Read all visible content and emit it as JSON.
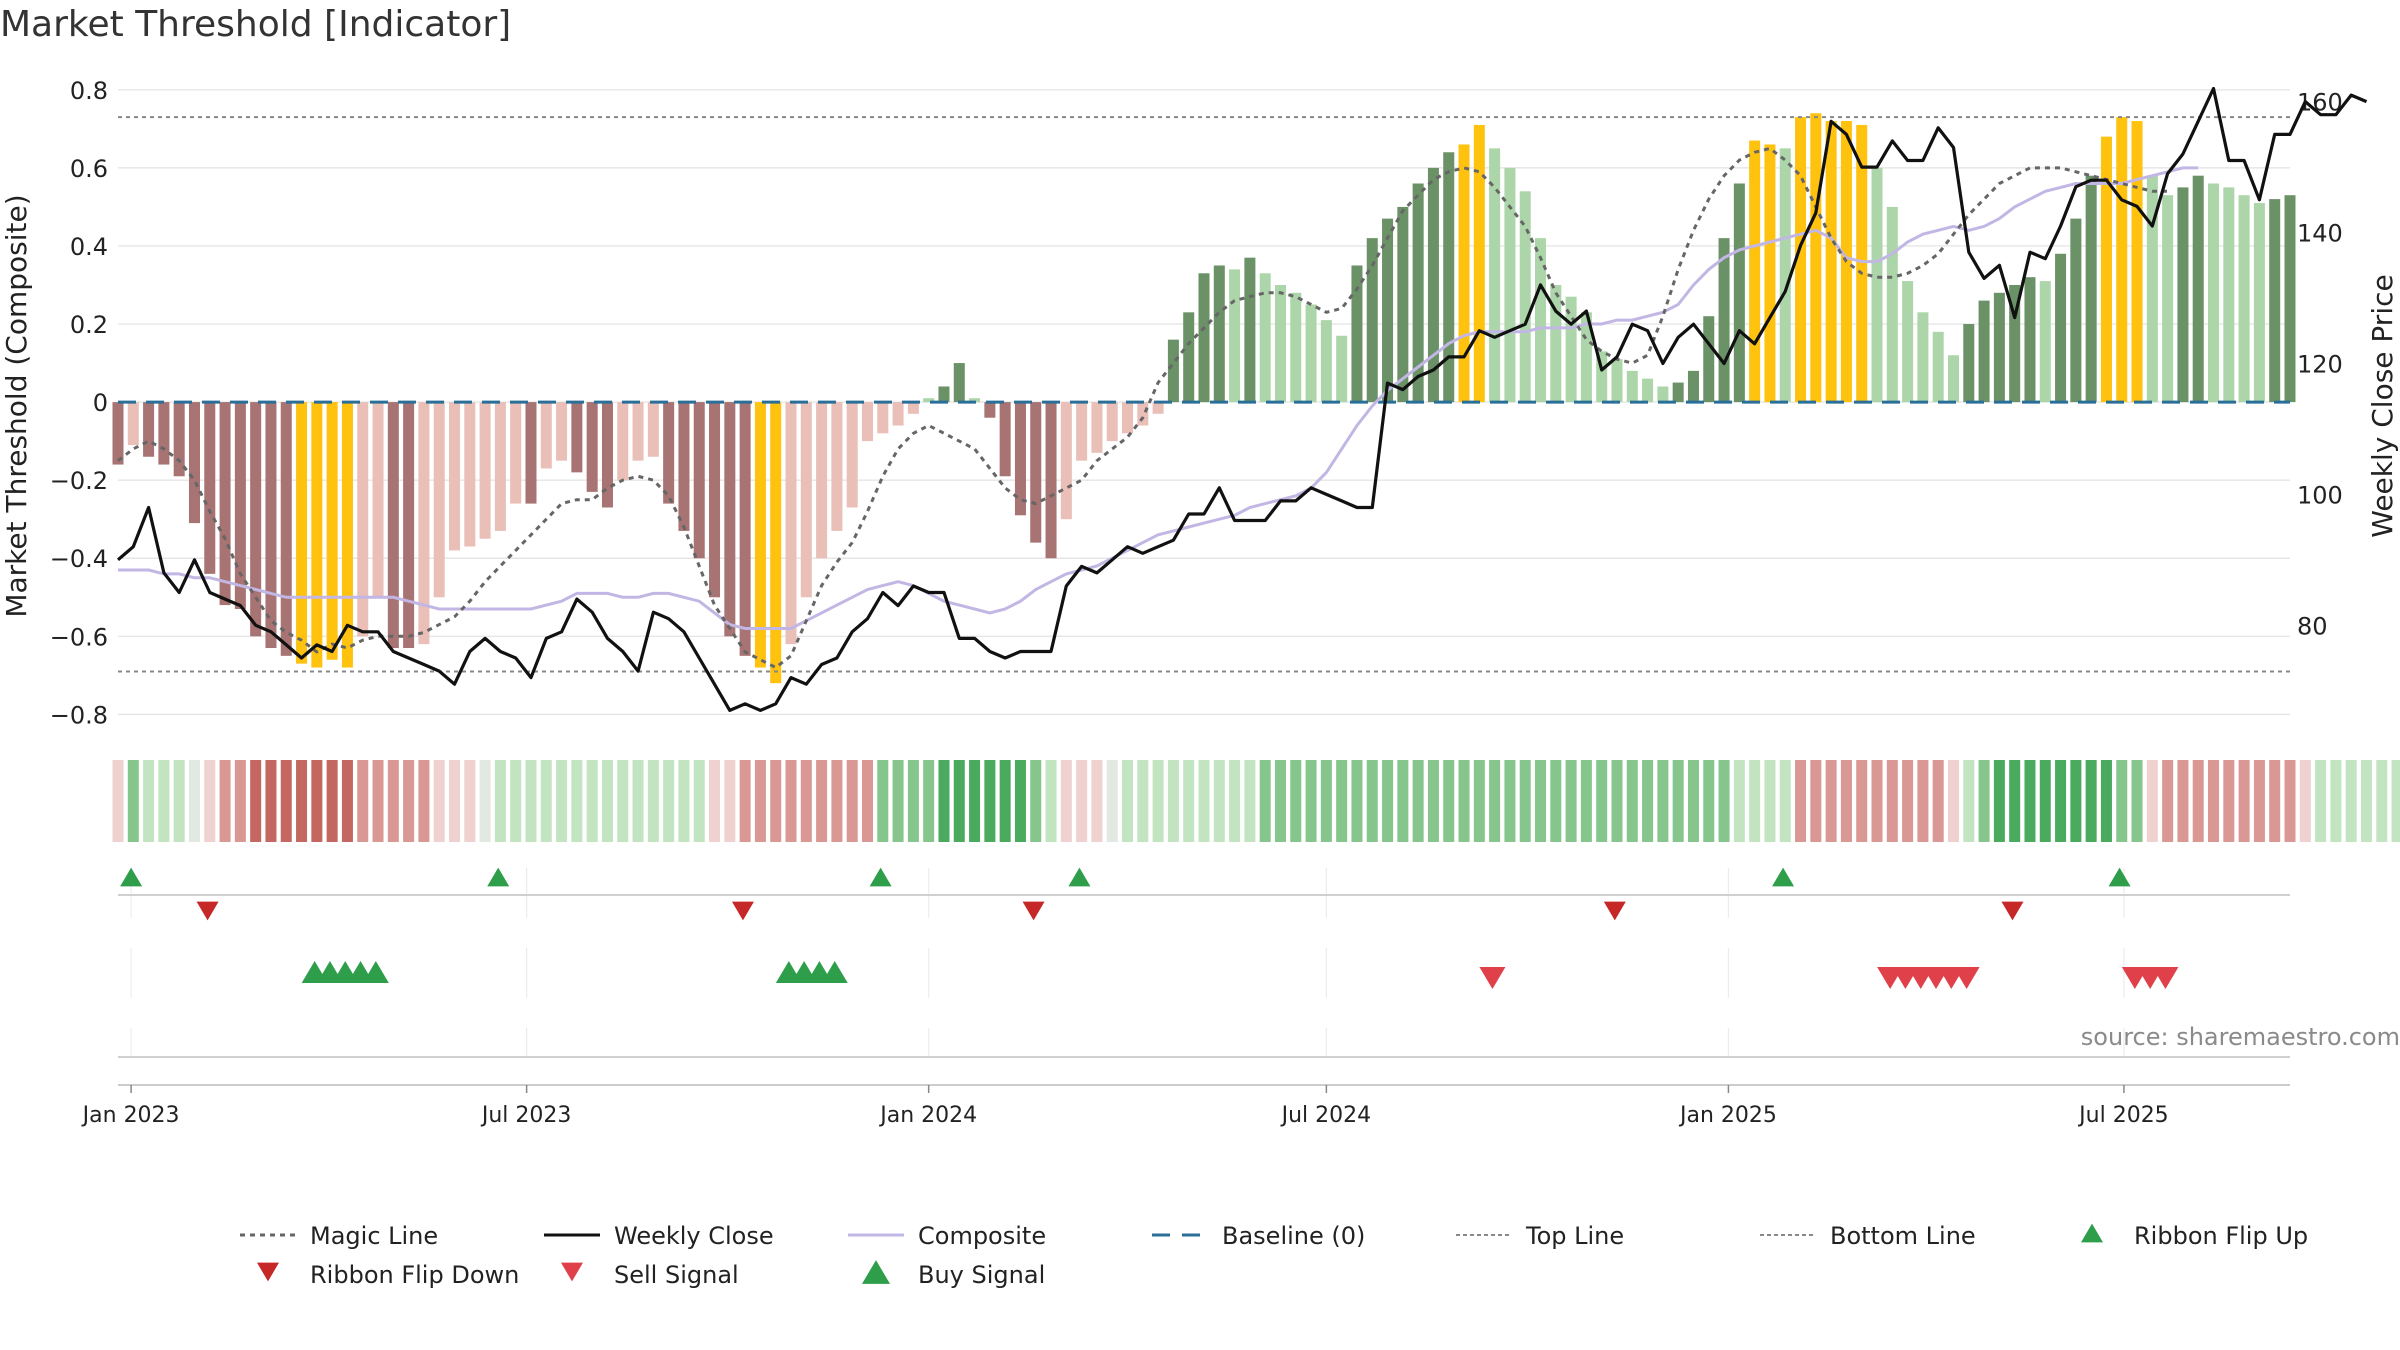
{
  "chart_data": {
    "type": "composite",
    "title": "Market Threshold [Indicator]",
    "source": "source: sharemaestro.com",
    "ylabel": "Market Threshold (Composite)",
    "y2label": "Weekly Close Price",
    "ylim": [
      -0.84,
      0.82
    ],
    "y2lim": [
      64,
      163
    ],
    "yticks": [
      0.8,
      0.6,
      0.4,
      0.2,
      0,
      -0.2,
      -0.4,
      -0.6,
      -0.8
    ],
    "ytick_labels": [
      "0.8",
      "0.6",
      "0.4",
      "0.2",
      "0",
      "−0.2",
      "−0.4",
      "−0.6",
      "−0.8"
    ],
    "y2ticks": [
      160,
      140,
      120,
      100,
      80
    ],
    "y2tick_labels": [
      "160",
      "140",
      "120",
      "100",
      "80"
    ],
    "x_start": "2022-12-26",
    "x_end": "2025-09-15",
    "xticks": [
      {
        "date": "2023-01-01",
        "label": "Jan 2023"
      },
      {
        "date": "2023-07-01",
        "label": "Jul 2023"
      },
      {
        "date": "2024-01-01",
        "label": "Jan 2024"
      },
      {
        "date": "2024-07-01",
        "label": "Jul 2024"
      },
      {
        "date": "2025-01-01",
        "label": "Jan 2025"
      },
      {
        "date": "2025-07-01",
        "label": "Jul 2025"
      }
    ],
    "top_line": 0.73,
    "bottom_line": -0.69,
    "weeks": 143,
    "composite_bars": [
      -0.16,
      -0.11,
      -0.14,
      -0.16,
      -0.19,
      -0.31,
      -0.44,
      -0.52,
      -0.53,
      -0.6,
      -0.63,
      -0.65,
      -0.67,
      -0.68,
      -0.66,
      -0.68,
      -0.6,
      -0.5,
      -0.63,
      -0.63,
      -0.62,
      -0.5,
      -0.38,
      -0.37,
      -0.35,
      -0.33,
      -0.26,
      -0.26,
      -0.17,
      -0.15,
      -0.18,
      -0.23,
      -0.27,
      -0.2,
      -0.15,
      -0.14,
      -0.26,
      -0.33,
      -0.4,
      -0.5,
      -0.6,
      -0.65,
      -0.68,
      -0.72,
      -0.62,
      -0.5,
      -0.4,
      -0.33,
      -0.27,
      -0.1,
      -0.08,
      -0.06,
      -0.03,
      0.01,
      0.04,
      0.1,
      0.01,
      -0.04,
      -0.19,
      -0.29,
      -0.36,
      -0.4,
      -0.3,
      -0.15,
      -0.13,
      -0.1,
      -0.08,
      -0.06,
      -0.03,
      0.16,
      0.23,
      0.33,
      0.35,
      0.34,
      0.37,
      0.33,
      0.3,
      0.28,
      0.25,
      0.21,
      0.17,
      0.35,
      0.42,
      0.47,
      0.5,
      0.56,
      0.6,
      0.64,
      0.66,
      0.71,
      0.65,
      0.6,
      0.54,
      0.42,
      0.3,
      0.27,
      0.23,
      0.13,
      0.11,
      0.08,
      0.06,
      0.04,
      0.05,
      0.08,
      0.22,
      0.42,
      0.56,
      0.67,
      0.66,
      0.65,
      0.73,
      0.74,
      0.72,
      0.72,
      0.71,
      0.6,
      0.5,
      0.31,
      0.23,
      0.18,
      0.12,
      0.2,
      0.26,
      0.28,
      0.3,
      0.32,
      0.31,
      0.38,
      0.47,
      0.58,
      0.68,
      0.73,
      0.72,
      0.58,
      0.53,
      0.55,
      0.58,
      0.56,
      0.55,
      0.53,
      0.51,
      0.52,
      0.53
    ],
    "weekly_close": [
      90,
      92,
      98,
      88,
      85,
      90,
      85,
      84,
      83,
      80,
      79,
      77,
      75,
      77,
      76,
      80,
      79,
      79,
      76,
      75,
      74,
      73,
      71,
      76,
      78,
      76,
      75,
      72,
      78,
      79,
      84,
      82,
      78,
      76,
      73,
      82,
      81,
      79,
      75,
      71,
      67,
      68,
      67,
      68,
      72,
      71,
      74,
      75,
      79,
      81,
      85,
      83,
      86,
      85,
      85,
      78,
      78,
      76,
      75,
      76,
      76,
      76,
      86,
      89,
      88,
      90,
      92,
      91,
      92,
      93,
      97,
      97,
      101,
      96,
      96,
      96,
      99,
      99,
      101,
      100,
      99,
      98,
      98,
      117,
      116,
      118,
      119,
      121,
      121,
      125,
      124,
      125,
      126,
      132,
      128,
      126,
      128,
      119,
      121,
      126,
      125,
      120,
      124,
      126,
      123,
      120,
      125,
      123,
      127,
      131,
      138,
      143,
      157,
      155,
      150,
      150,
      154,
      151,
      151,
      156,
      153,
      137,
      133,
      135,
      127,
      137,
      136,
      141,
      147,
      148,
      148,
      145,
      144,
      141,
      149,
      152,
      157,
      162,
      151,
      151,
      145,
      155,
      155,
      160,
      158,
      158,
      161,
      160
    ],
    "magic_line": [
      -0.15,
      -0.12,
      -0.1,
      -0.12,
      -0.15,
      -0.2,
      -0.28,
      -0.35,
      -0.44,
      -0.5,
      -0.56,
      -0.59,
      -0.61,
      -0.64,
      -0.62,
      -0.63,
      -0.61,
      -0.6,
      -0.6,
      -0.6,
      -0.59,
      -0.57,
      -0.55,
      -0.51,
      -0.46,
      -0.42,
      -0.38,
      -0.34,
      -0.3,
      -0.26,
      -0.25,
      -0.25,
      -0.22,
      -0.2,
      -0.19,
      -0.2,
      -0.24,
      -0.32,
      -0.42,
      -0.52,
      -0.58,
      -0.64,
      -0.66,
      -0.68,
      -0.65,
      -0.56,
      -0.47,
      -0.41,
      -0.36,
      -0.28,
      -0.19,
      -0.12,
      -0.08,
      -0.06,
      -0.08,
      -0.1,
      -0.12,
      -0.17,
      -0.22,
      -0.25,
      -0.26,
      -0.24,
      -0.22,
      -0.2,
      -0.15,
      -0.12,
      -0.09,
      -0.04,
      0.05,
      0.1,
      0.15,
      0.19,
      0.23,
      0.26,
      0.27,
      0.28,
      0.28,
      0.27,
      0.25,
      0.23,
      0.24,
      0.29,
      0.35,
      0.42,
      0.49,
      0.53,
      0.57,
      0.59,
      0.6,
      0.59,
      0.55,
      0.5,
      0.45,
      0.37,
      0.28,
      0.22,
      0.16,
      0.13,
      0.11,
      0.1,
      0.12,
      0.22,
      0.34,
      0.44,
      0.52,
      0.58,
      0.62,
      0.64,
      0.65,
      0.62,
      0.58,
      0.5,
      0.42,
      0.36,
      0.33,
      0.32,
      0.32,
      0.33,
      0.35,
      0.38,
      0.43,
      0.48,
      0.52,
      0.56,
      0.58,
      0.6,
      0.6,
      0.6,
      0.59,
      0.58,
      0.57,
      0.56,
      0.55,
      0.54,
      0.54
    ],
    "composite_line": [
      -0.43,
      -0.43,
      -0.43,
      -0.44,
      -0.44,
      -0.45,
      -0.45,
      -0.46,
      -0.47,
      -0.48,
      -0.49,
      -0.5,
      -0.5,
      -0.5,
      -0.5,
      -0.5,
      -0.5,
      -0.5,
      -0.5,
      -0.51,
      -0.52,
      -0.53,
      -0.53,
      -0.53,
      -0.53,
      -0.53,
      -0.53,
      -0.53,
      -0.52,
      -0.51,
      -0.49,
      -0.49,
      -0.49,
      -0.5,
      -0.5,
      -0.49,
      -0.49,
      -0.5,
      -0.51,
      -0.54,
      -0.57,
      -0.58,
      -0.58,
      -0.58,
      -0.58,
      -0.56,
      -0.54,
      -0.52,
      -0.5,
      -0.48,
      -0.47,
      -0.46,
      -0.47,
      -0.49,
      -0.51,
      -0.52,
      -0.53,
      -0.54,
      -0.53,
      -0.51,
      -0.48,
      -0.46,
      -0.44,
      -0.43,
      -0.42,
      -0.4,
      -0.38,
      -0.36,
      -0.34,
      -0.33,
      -0.32,
      -0.31,
      -0.3,
      -0.29,
      -0.27,
      -0.26,
      -0.25,
      -0.24,
      -0.22,
      -0.18,
      -0.12,
      -0.06,
      -0.01,
      0.03,
      0.06,
      0.09,
      0.12,
      0.15,
      0.17,
      0.18,
      0.18,
      0.18,
      0.18,
      0.19,
      0.19,
      0.19,
      0.2,
      0.2,
      0.21,
      0.21,
      0.22,
      0.23,
      0.25,
      0.3,
      0.34,
      0.37,
      0.39,
      0.4,
      0.41,
      0.42,
      0.43,
      0.44,
      0.42,
      0.37,
      0.36,
      0.36,
      0.38,
      0.41,
      0.43,
      0.44,
      0.45,
      0.44,
      0.45,
      0.47,
      0.5,
      0.52,
      0.54,
      0.55,
      0.56,
      0.56,
      0.56,
      0.56,
      0.57,
      0.58,
      0.59,
      0.6,
      0.6
    ],
    "ribbon": [
      -1,
      2,
      1,
      1,
      1,
      0,
      -1,
      -2,
      -2,
      -3,
      -3,
      -3,
      -3,
      -3,
      -3,
      -3,
      -2,
      -2,
      -2,
      -2,
      -2,
      -1,
      -1,
      -1,
      0,
      1,
      1,
      1,
      1,
      1,
      1,
      1,
      1,
      1,
      1,
      1,
      1,
      1,
      1,
      -1,
      -1,
      -2,
      -2,
      -2,
      -2,
      -2,
      -2,
      -2,
      -2,
      -2,
      2,
      2,
      2,
      2,
      3,
      3,
      3,
      3,
      3,
      3,
      2,
      1,
      -1,
      -1,
      -1,
      0,
      1,
      1,
      1,
      1,
      1,
      1,
      1,
      1,
      1,
      2,
      2,
      2,
      2,
      2,
      2,
      2,
      2,
      2,
      2,
      2,
      2,
      2,
      2,
      2,
      2,
      2,
      2,
      2,
      2,
      2,
      2,
      2,
      2,
      2,
      2,
      2,
      2,
      2,
      2,
      2,
      1,
      1,
      1,
      1,
      -2,
      -2,
      -2,
      -2,
      -2,
      -2,
      -2,
      -2,
      -2,
      -2,
      -1,
      1,
      2,
      3,
      3,
      3,
      3,
      3,
      3,
      3,
      3,
      2,
      2,
      -1,
      -2,
      -2,
      -2,
      -2,
      -2,
      -2,
      -2,
      -2,
      -2,
      -1,
      1,
      1,
      1,
      1,
      1,
      1,
      1,
      1,
      1,
      1,
      1,
      1,
      1
    ],
    "ribbon_flip_up_dates": [
      "2023-01-01",
      "2023-06-18",
      "2023-12-10",
      "2024-03-10",
      "2025-01-26",
      "2025-06-29"
    ],
    "ribbon_flip_down_dates": [
      "2023-02-05",
      "2023-10-08",
      "2024-02-18",
      "2024-11-10",
      "2025-05-11"
    ],
    "buy_signal_dates": [
      "2023-03-26",
      "2023-04-02",
      "2023-04-09",
      "2023-04-16",
      "2023-04-23",
      "2023-10-29",
      "2023-11-05",
      "2023-11-12",
      "2023-11-19"
    ],
    "sell_signal_dates": [
      "2024-09-15",
      "2025-03-16",
      "2025-03-23",
      "2025-03-30",
      "2025-04-06",
      "2025-04-13",
      "2025-04-20",
      "2025-07-06",
      "2025-07-13",
      "2025-07-20"
    ],
    "legend": [
      "Magic Line",
      "Weekly Close",
      "Composite",
      "Baseline (0)",
      "Top Line",
      "Bottom Line",
      "Ribbon Flip Up",
      "Ribbon Flip Down",
      "Sell Signal",
      "Buy Signal"
    ],
    "colors": {
      "strong_pos": "#6b9167",
      "weak_pos": "#acd6a9",
      "strong_neg": "#a87373",
      "weak_neg": "#e9bfb8",
      "extreme": "#ffc20e",
      "magic_line": "#666666",
      "weekly_close": "#111111",
      "composite_line": "#c2b6e4",
      "baseline": "#2a6f97",
      "top_bottom_line": "#888888",
      "flip_up": "#2e9e4a",
      "flip_down": "#c62828",
      "buy": "#2e9e4a",
      "sell": "#e0404a"
    }
  }
}
